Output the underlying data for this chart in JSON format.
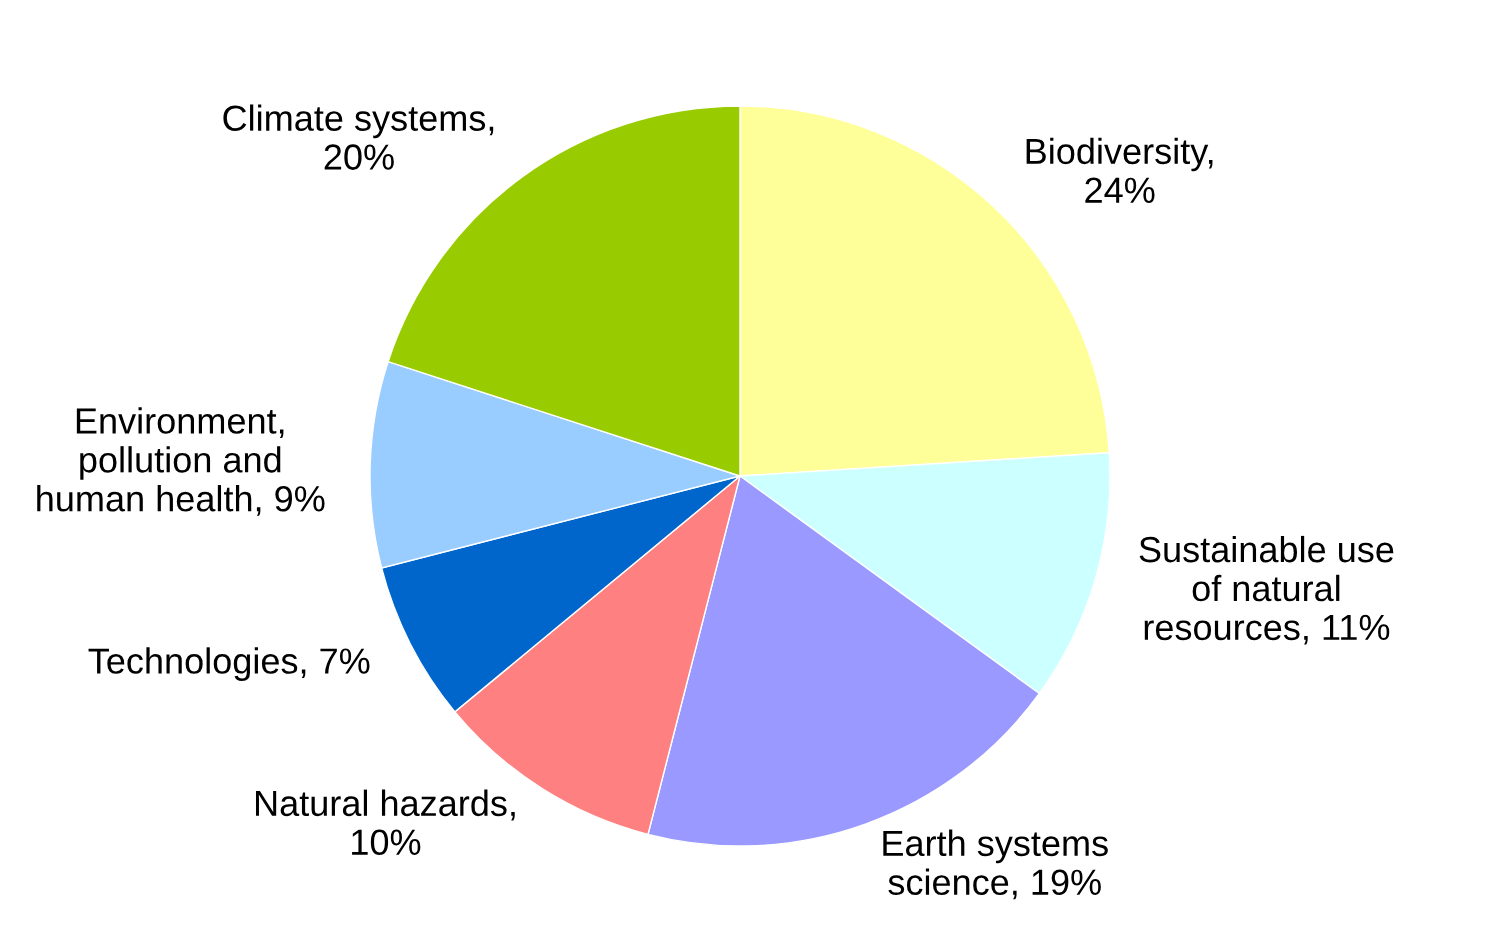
{
  "chart_data": {
    "type": "pie",
    "categories": [
      "Biodiversity, 24%",
      "Sustainable use of natural resources, 11%",
      "Earth systems science, 19%",
      "Natural hazards, 10%",
      "Technologies, 7%",
      "Environment, pollution and human health, 9%",
      "Climate systems, 20%"
    ],
    "values": [
      24,
      11,
      19,
      10,
      7,
      9,
      20
    ],
    "colors": [
      "#ffff99",
      "#ccffff",
      "#9999ff",
      "#ff8080",
      "#0066cc",
      "#99ccff",
      "#99cc00"
    ],
    "legend": false
  }
}
